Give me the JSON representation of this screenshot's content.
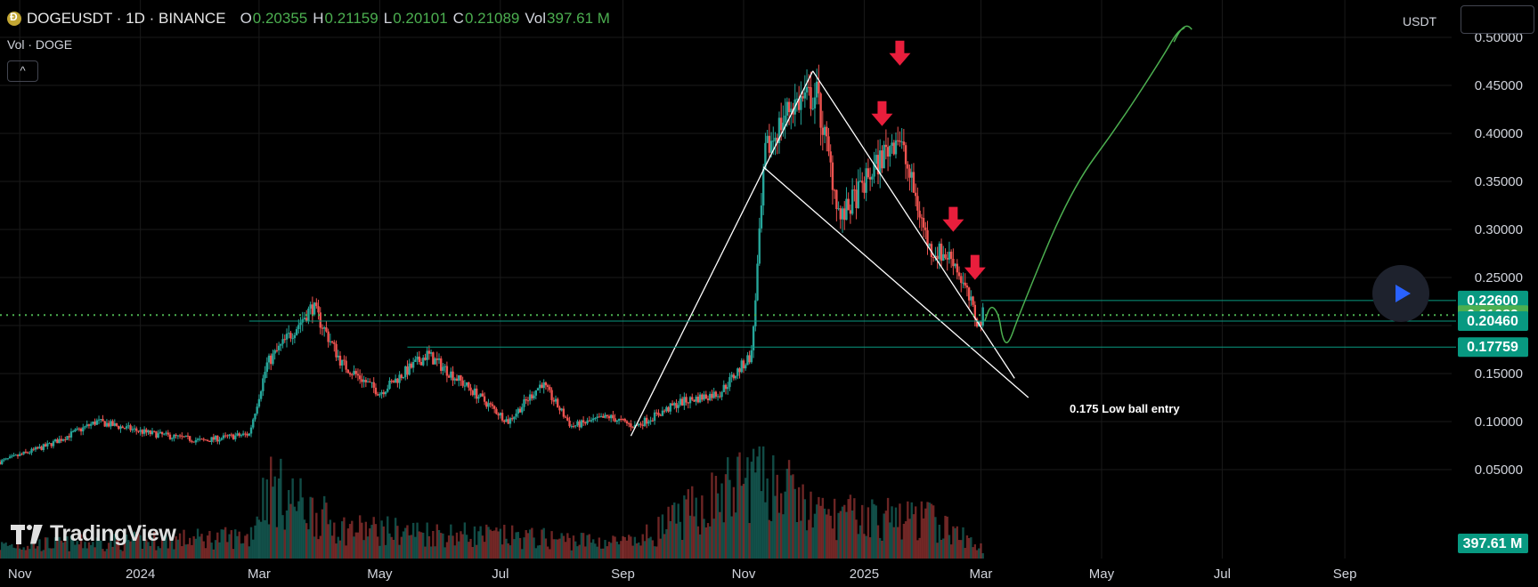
{
  "header": {
    "symbol": "DOGEUSDT · 1D · BINANCE",
    "open_label": "O",
    "open": "0.20355",
    "high_label": "H",
    "high": "0.21159",
    "low_label": "L",
    "low": "0.20101",
    "close_label": "C",
    "close": "0.21089",
    "vol_label": "Vol",
    "vol": "397.61 M",
    "coin_icon": "doge-coin-icon"
  },
  "volume_legend": "Vol · DOGE",
  "collapse_button": "^",
  "currency_button": "USDT",
  "play_button_icon": "play-icon",
  "logo_text": "TradingView",
  "annotation": "0.175 Low ball entry",
  "colors": {
    "up": "#26a69a",
    "down": "#ef5350",
    "label_teal": "#089981",
    "label_green": "#4caf50",
    "arrow": "#e91e3c",
    "forecast": "#4caf50",
    "grid": "#1a1a1a",
    "trendline": "#ffffff"
  },
  "chart_data": {
    "type": "candlestick",
    "symbol": "DOGEUSDT",
    "interval": "1D",
    "exchange": "BINANCE",
    "y_axis": {
      "range": [
        0.0,
        0.5
      ],
      "ticks": [
        "0.50000",
        "0.45000",
        "0.40000",
        "0.35000",
        "0.30000",
        "0.25000",
        "0.20000",
        "0.15000",
        "0.10000",
        "0.05000"
      ],
      "tick_values": [
        0.5,
        0.45,
        0.4,
        0.35,
        0.3,
        0.25,
        0.2,
        0.15,
        0.1,
        0.05
      ]
    },
    "x_axis": {
      "range": [
        "2023-10-22",
        "2025-10-25"
      ],
      "labels": [
        {
          "text": "Nov",
          "date": "2023-11-01"
        },
        {
          "text": "2024",
          "date": "2024-01-01"
        },
        {
          "text": "Mar",
          "date": "2024-03-01"
        },
        {
          "text": "May",
          "date": "2024-05-01"
        },
        {
          "text": "Jul",
          "date": "2024-07-01"
        },
        {
          "text": "Sep",
          "date": "2024-09-01"
        },
        {
          "text": "Nov",
          "date": "2024-11-01"
        },
        {
          "text": "2025",
          "date": "2025-01-01"
        },
        {
          "text": "Mar",
          "date": "2025-03-01"
        },
        {
          "text": "May",
          "date": "2025-05-01"
        },
        {
          "text": "Jul",
          "date": "2025-07-01"
        },
        {
          "text": "Sep",
          "date": "2025-09-01"
        }
      ]
    },
    "price_path": [
      [
        "2023-10-22",
        0.058
      ],
      [
        "2023-11-15",
        0.075
      ],
      [
        "2023-12-10",
        0.1
      ],
      [
        "2024-01-05",
        0.088
      ],
      [
        "2024-02-01",
        0.08
      ],
      [
        "2024-02-25",
        0.087
      ],
      [
        "2024-03-05",
        0.16
      ],
      [
        "2024-03-28",
        0.22
      ],
      [
        "2024-04-12",
        0.16
      ],
      [
        "2024-05-01",
        0.13
      ],
      [
        "2024-05-25",
        0.17
      ],
      [
        "2024-06-18",
        0.13
      ],
      [
        "2024-07-05",
        0.1
      ],
      [
        "2024-07-22",
        0.14
      ],
      [
        "2024-08-06",
        0.095
      ],
      [
        "2024-08-25",
        0.105
      ],
      [
        "2024-09-07",
        0.095
      ],
      [
        "2024-09-30",
        0.12
      ],
      [
        "2024-10-20",
        0.13
      ],
      [
        "2024-11-05",
        0.17
      ],
      [
        "2024-11-12",
        0.38
      ],
      [
        "2024-11-25",
        0.43
      ],
      [
        "2024-12-08",
        0.44
      ],
      [
        "2024-12-20",
        0.31
      ],
      [
        "2025-01-05",
        0.36
      ],
      [
        "2025-01-18",
        0.4
      ],
      [
        "2025-02-03",
        0.28
      ],
      [
        "2025-02-15",
        0.27
      ],
      [
        "2025-02-28",
        0.2
      ],
      [
        "2025-03-02",
        0.21089
      ]
    ],
    "volume_path": [
      [
        "2023-10-22",
        0.15
      ],
      [
        "2024-02-25",
        0.25
      ],
      [
        "2024-03-05",
        0.85
      ],
      [
        "2024-04-12",
        0.35
      ],
      [
        "2024-09-07",
        0.18
      ],
      [
        "2024-11-10",
        1.0
      ],
      [
        "2024-12-08",
        0.5
      ],
      [
        "2025-02-03",
        0.45
      ],
      [
        "2025-03-02",
        0.12
      ]
    ],
    "price_labels": [
      {
        "value": 0.226,
        "text": "0.22600",
        "color": "#089981",
        "line": true,
        "line_start": "2025-03-01"
      },
      {
        "value": 0.21089,
        "text": "0.21089",
        "color": "#4caf50",
        "line": "dotted",
        "line_start": "2023-10-22"
      },
      {
        "value": 0.2046,
        "text": "0.20460",
        "color": "#089981",
        "line": true,
        "line_start": "2024-02-25"
      },
      {
        "value": 0.17759,
        "text": "0.17759",
        "color": "#089981",
        "line": true,
        "line_start": "2024-05-15"
      }
    ],
    "volume_label": {
      "value": 397.61,
      "unit": "M",
      "text": "397.61 M"
    },
    "trendlines": [
      {
        "from": [
          "2024-09-05",
          0.085
        ],
        "to": [
          "2024-12-06",
          0.465
        ]
      },
      {
        "from": [
          "2024-11-11",
          0.365
        ],
        "to": [
          "2025-03-25",
          0.125
        ]
      },
      {
        "from": [
          "2024-12-06",
          0.465
        ],
        "to": [
          "2025-03-18",
          0.145
        ]
      }
    ],
    "down_arrows": [
      {
        "date": "2025-01-10",
        "value": 0.415
      },
      {
        "date": "2025-01-19",
        "value": 0.478
      },
      {
        "date": "2025-02-15",
        "value": 0.305
      },
      {
        "date": "2025-02-26",
        "value": 0.255
      }
    ],
    "forecast_path": [
      [
        "2025-03-03",
        0.205
      ],
      [
        "2025-03-06",
        0.222
      ],
      [
        "2025-03-10",
        0.212
      ],
      [
        "2025-03-12",
        0.185
      ],
      [
        "2025-03-15",
        0.18
      ],
      [
        "2025-03-20",
        0.21
      ],
      [
        "2025-04-15",
        0.34
      ],
      [
        "2025-05-10",
        0.41
      ],
      [
        "2025-06-01",
        0.48
      ],
      [
        "2025-06-08",
        0.505
      ],
      [
        "2025-06-12",
        0.51
      ]
    ],
    "annotation": {
      "text": "0.175 Low ball entry",
      "date": "2025-03-28",
      "value": 0.155
    }
  }
}
